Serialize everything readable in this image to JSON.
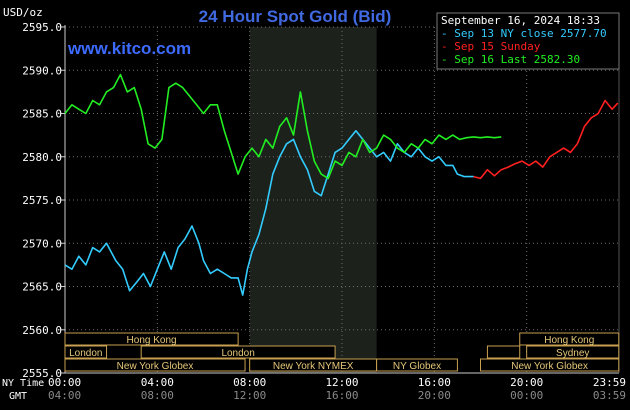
{
  "chart_data": {
    "type": "line",
    "title": "24 Hour Spot Gold (Bid)",
    "watermark": "www.kitco.com",
    "date_label": "September 16, 2024 18:33",
    "ylabel": "USD/oz",
    "ylim": [
      2555,
      2595
    ],
    "yticks": [
      "2595.0",
      "2590.0",
      "2585.0",
      "2580.0",
      "2575.0",
      "2570.0",
      "2565.0",
      "2560.0",
      "2555.0"
    ],
    "xlim": [
      0,
      24
    ],
    "xaxis_row_labels": {
      "ny": "NY Time",
      "gmt": "GMT"
    },
    "xticks_ny": [
      "00:00",
      "04:00",
      "08:00",
      "12:00",
      "16:00",
      "20:00",
      "23:59"
    ],
    "xticks_gmt": [
      "04:00",
      "08:00",
      "12:00",
      "16:00",
      "20:00",
      "00:00",
      "03:59"
    ],
    "highlight_hours": [
      8.0,
      13.5
    ],
    "legend": [
      {
        "text": "Sep 13 NY close 2577.70",
        "color": "#33ccff"
      },
      {
        "text": "Sep 15 Sunday",
        "color": "#ff2020"
      },
      {
        "text": "Sep 16 Last 2582.30",
        "color": "#22ee22"
      }
    ],
    "series": [
      {
        "name": "Sep 13 NY close 2577.70",
        "color": "#33ccff",
        "x": [
          0,
          0.3,
          0.6,
          0.9,
          1.2,
          1.5,
          1.8,
          2.2,
          2.5,
          2.8,
          3.1,
          3.4,
          3.7,
          4.0,
          4.3,
          4.6,
          4.9,
          5.2,
          5.5,
          5.8,
          6.0,
          6.3,
          6.6,
          6.9,
          7.2,
          7.5,
          7.7,
          7.9,
          8.1,
          8.4,
          8.7,
          9.0,
          9.3,
          9.6,
          9.9,
          10.2,
          10.5,
          10.8,
          11.1,
          11.4,
          11.7,
          12.0,
          12.3,
          12.6,
          12.9,
          13.2,
          13.5,
          13.8,
          14.1,
          14.4,
          14.7,
          15.0,
          15.3,
          15.6,
          15.9,
          16.2,
          16.5,
          16.8,
          17.0,
          17.3,
          17.7
        ],
        "y": [
          2567.5,
          2567.0,
          2568.5,
          2567.5,
          2569.5,
          2569.0,
          2570.0,
          2568.0,
          2567.0,
          2564.5,
          2565.5,
          2566.5,
          2565.0,
          2567.0,
          2569.0,
          2567.0,
          2569.5,
          2570.5,
          2572.0,
          2570.0,
          2568.0,
          2566.5,
          2567.0,
          2566.5,
          2566.0,
          2566.0,
          2564.0,
          2567.0,
          2569.0,
          2571.0,
          2574.0,
          2578.0,
          2580.0,
          2581.5,
          2582.0,
          2580.0,
          2578.5,
          2576.0,
          2575.5,
          2578.0,
          2580.5,
          2581.0,
          2582.0,
          2583.0,
          2582.0,
          2581.0,
          2580.0,
          2580.5,
          2579.5,
          2581.5,
          2580.5,
          2580.0,
          2581.0,
          2580.0,
          2579.5,
          2580.0,
          2579.0,
          2579.0,
          2578.0,
          2577.7,
          2577.7
        ]
      },
      {
        "name": "Sep 15 Sunday",
        "color": "#ff2020",
        "x": [
          17.7,
          18.0,
          18.3,
          18.6,
          18.9,
          19.2,
          19.5,
          19.8,
          20.1,
          20.4,
          20.7,
          21.0,
          21.3,
          21.6,
          21.9,
          22.2,
          22.5,
          22.8,
          23.1,
          23.4,
          23.7,
          23.95
        ],
        "y": [
          2577.7,
          2577.5,
          2578.5,
          2577.8,
          2578.5,
          2578.8,
          2579.2,
          2579.5,
          2579.0,
          2579.5,
          2578.8,
          2580.0,
          2580.5,
          2581.0,
          2580.5,
          2581.5,
          2583.5,
          2584.5,
          2585.0,
          2586.5,
          2585.5,
          2586.2
        ]
      },
      {
        "name": "Sep 16 Last 2582.30",
        "color": "#22ee22",
        "x": [
          0,
          0.3,
          0.6,
          0.9,
          1.2,
          1.5,
          1.8,
          2.1,
          2.4,
          2.7,
          3.0,
          3.3,
          3.6,
          3.9,
          4.2,
          4.5,
          4.8,
          5.1,
          5.4,
          5.7,
          6.0,
          6.3,
          6.6,
          6.9,
          7.2,
          7.5,
          7.8,
          8.1,
          8.4,
          8.7,
          9.0,
          9.3,
          9.6,
          9.9,
          10.2,
          10.5,
          10.8,
          11.1,
          11.4,
          11.7,
          12.0,
          12.3,
          12.6,
          12.9,
          13.2,
          13.5,
          13.8,
          14.1,
          14.4,
          14.7,
          15.0,
          15.3,
          15.6,
          15.9,
          16.2,
          16.5,
          16.8,
          17.1,
          17.4,
          17.7,
          18.0,
          18.3,
          18.6,
          18.9
        ],
        "y": [
          2585.0,
          2586.0,
          2585.5,
          2585.0,
          2586.5,
          2586.0,
          2587.5,
          2588.0,
          2589.5,
          2587.5,
          2588.0,
          2585.5,
          2581.5,
          2581.0,
          2582.0,
          2588.0,
          2588.5,
          2588.0,
          2587.0,
          2586.0,
          2585.0,
          2586.0,
          2586.0,
          2583.0,
          2580.5,
          2578.0,
          2580.0,
          2581.0,
          2580.0,
          2582.0,
          2581.0,
          2583.5,
          2584.5,
          2582.5,
          2587.5,
          2583.0,
          2579.5,
          2578.0,
          2577.5,
          2579.5,
          2579.0,
          2580.5,
          2580.0,
          2582.0,
          2580.5,
          2581.0,
          2582.5,
          2582.0,
          2581.0,
          2580.5,
          2581.5,
          2581.0,
          2582.0,
          2581.5,
          2582.5,
          2582.0,
          2582.5,
          2582.0,
          2582.2,
          2582.3,
          2582.2,
          2582.3,
          2582.2,
          2582.3
        ]
      }
    ],
    "sessions": [
      {
        "label": "Hong Kong",
        "row": 0,
        "start": 0,
        "end": 7.5
      },
      {
        "label": "Hong Kong",
        "row": 0,
        "start": 19.7,
        "end": 23.99
      },
      {
        "label": "London",
        "row": 1,
        "start": 0,
        "end": 1.8
      },
      {
        "label": "London",
        "row": 1,
        "start": 3.3,
        "end": 11.7
      },
      {
        "label": "Sydney",
        "row": 1,
        "start": 20.0,
        "end": 23.99
      },
      {
        "label": "",
        "row": 1,
        "start": 18.3,
        "end": 19.7
      },
      {
        "label": "New York Globex",
        "row": 2,
        "start": 0,
        "end": 7.8
      },
      {
        "label": "New York NYMEX",
        "row": 2,
        "start": 8.0,
        "end": 13.5
      },
      {
        "label": "NY Globex",
        "row": 2,
        "start": 13.5,
        "end": 17.0
      },
      {
        "label": "New York Globex",
        "row": 2,
        "start": 18.0,
        "end": 23.99
      }
    ]
  }
}
